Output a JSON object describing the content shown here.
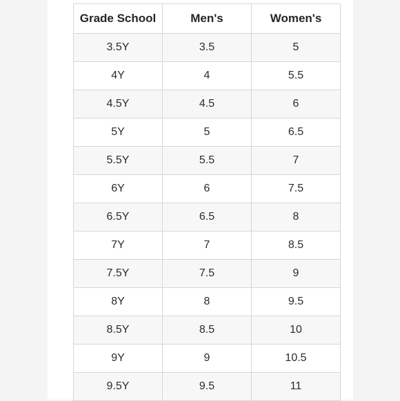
{
  "table": {
    "headers": [
      "Grade School",
      "Men's",
      "Women's"
    ],
    "rows": [
      [
        "3.5Y",
        "3.5",
        "5"
      ],
      [
        "4Y",
        "4",
        "5.5"
      ],
      [
        "4.5Y",
        "4.5",
        "6"
      ],
      [
        "5Y",
        "5",
        "6.5"
      ],
      [
        "5.5Y",
        "5.5",
        "7"
      ],
      [
        "6Y",
        "6",
        "7.5"
      ],
      [
        "6.5Y",
        "6.5",
        "8"
      ],
      [
        "7Y",
        "7",
        "8.5"
      ],
      [
        "7.5Y",
        "7.5",
        "9"
      ],
      [
        "8Y",
        "8",
        "9.5"
      ],
      [
        "8.5Y",
        "8.5",
        "10"
      ],
      [
        "9Y",
        "9",
        "10.5"
      ],
      [
        "9.5Y",
        "9.5",
        "11"
      ]
    ]
  }
}
